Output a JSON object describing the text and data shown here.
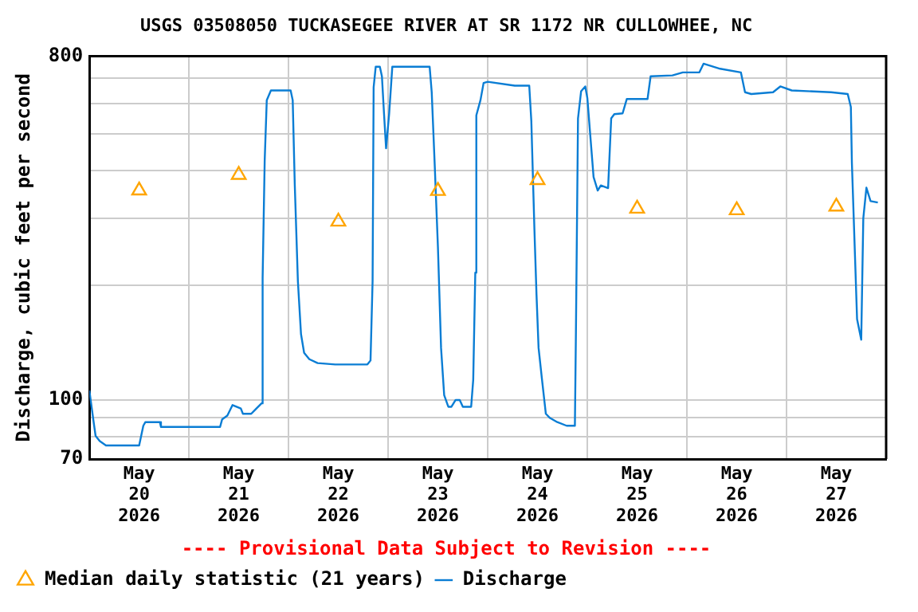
{
  "chart_data": {
    "type": "line",
    "title": "USGS 03508050 TUCKASEGEE RIVER AT SR 1172 NR CULLOWHEE, NC",
    "ylabel": "Discharge, cubic feet per second",
    "annotations": [
      "---- Provisional Data Subject to Revision ----"
    ],
    "xlim": [
      "2026-05-20T00:00",
      "2026-05-28T00:00"
    ],
    "xticks": [
      {
        "value": "2026-05-20T12:00",
        "label": "May 20 2026"
      },
      {
        "value": "2026-05-21T12:00",
        "label": "May 21 2026"
      },
      {
        "value": "2026-05-22T12:00",
        "label": "May 22 2026"
      },
      {
        "value": "2026-05-23T12:00",
        "label": "May 23 2026"
      },
      {
        "value": "2026-05-24T12:00",
        "label": "May 24 2026"
      },
      {
        "value": "2026-05-25T12:00",
        "label": "May 25 2026"
      },
      {
        "value": "2026-05-26T12:00",
        "label": "May 26 2026"
      },
      {
        "value": "2026-05-27T12:00",
        "label": "May 27 2026"
      },
      {
        "value": "2026-05-21T00:00",
        "label": null
      },
      {
        "value": "2026-05-22T00:00",
        "label": null
      },
      {
        "value": "2026-05-23T00:00",
        "label": null
      },
      {
        "value": "2026-05-24T00:00",
        "label": null
      },
      {
        "value": "2026-05-25T00:00",
        "label": null
      },
      {
        "value": "2026-05-26T00:00",
        "label": null
      },
      {
        "value": "2026-05-27T00:00",
        "label": null
      }
    ],
    "ylim": [
      70,
      800
    ],
    "yticks": [
      70,
      {
        "value": 80,
        "label": null
      },
      {
        "value": 90,
        "label": null
      },
      100,
      {
        "value": 200,
        "label": null
      },
      {
        "value": 300,
        "label": null
      },
      {
        "value": 400,
        "label": null
      },
      {
        "value": 500,
        "label": null
      },
      {
        "value": 600,
        "label": null
      },
      {
        "value": 700,
        "label": null
      },
      800
    ],
    "log": "y",
    "grid": true,
    "legend": "bottom",
    "series": [
      {
        "name": "Median daily statistic (21 years)",
        "type": "scatter",
        "marker": "triangle",
        "color": "#ffa500",
        "x": [
          "2026-05-20T12:00",
          "2026-05-21T12:00",
          "2026-05-22T12:00",
          "2026-05-23T12:00",
          "2026-05-24T12:00",
          "2026-05-25T12:00",
          "2026-05-26T12:00",
          "2026-05-27T12:00"
        ],
        "values": [
          355,
          390,
          294,
          354,
          378,
          318,
          315,
          322
        ]
      },
      {
        "name": "Discharge",
        "type": "line",
        "marker": "none",
        "color": "#0a7dd4",
        "x": [
          "2026-05-20T00:00",
          "2026-05-20T01:00",
          "2026-05-20T01:30",
          "2026-05-20T02:30",
          "2026-05-20T04:00",
          "2026-05-20T12:00",
          "2026-05-20T13:00",
          "2026-05-20T13:30",
          "2026-05-20T17:00",
          "2026-05-20T17:15",
          "2026-05-21T07:30",
          "2026-05-21T08:00",
          "2026-05-21T09:15",
          "2026-05-21T10:30",
          "2026-05-21T12:30",
          "2026-05-21T13:00",
          "2026-05-21T15:00",
          "2026-05-21T16:15",
          "2026-05-21T17:30",
          "2026-05-21T17:45",
          "2026-05-21T18:15",
          "2026-05-21T18:45",
          "2026-05-21T19:45",
          "2026-05-22T00:30",
          "2026-05-22T01:00",
          "2026-05-22T01:30",
          "2026-05-22T02:15",
          "2026-05-22T03:00",
          "2026-05-22T03:45",
          "2026-05-22T05:00",
          "2026-05-22T07:00",
          "2026-05-22T11:15",
          "2026-05-22T19:00",
          "2026-05-22T19:45",
          "2026-05-22T20:15",
          "2026-05-22T20:30",
          "2026-05-22T21:00",
          "2026-05-22T22:00",
          "2026-05-22T22:30",
          "2026-05-22T23:00",
          "2026-05-22T23:30",
          "2026-05-23T00:15",
          "2026-05-23T01:00",
          "2026-05-23T10:00",
          "2026-05-23T10:30",
          "2026-05-23T11:15",
          "2026-05-23T12:00",
          "2026-05-23T12:45",
          "2026-05-23T13:30",
          "2026-05-23T14:30",
          "2026-05-23T15:15",
          "2026-05-23T16:15",
          "2026-05-23T17:15",
          "2026-05-23T18:00",
          "2026-05-23T20:00",
          "2026-05-23T20:30",
          "2026-05-23T21:00",
          "2026-05-23T21:15",
          "2026-05-23T22:15",
          "2026-05-23T23:00",
          "2026-05-24T00:00",
          "2026-05-24T06:30",
          "2026-05-24T10:00",
          "2026-05-24T10:30",
          "2026-05-24T11:15",
          "2026-05-24T11:45",
          "2026-05-24T12:15",
          "2026-05-24T13:00",
          "2026-05-24T14:00",
          "2026-05-24T15:00",
          "2026-05-24T16:45",
          "2026-05-24T19:00",
          "2026-05-24T21:00",
          "2026-05-24T21:15",
          "2026-05-24T21:45",
          "2026-05-24T22:30",
          "2026-05-24T23:30",
          "2026-05-25T00:00",
          "2026-05-25T00:45",
          "2026-05-25T01:30",
          "2026-05-25T02:30",
          "2026-05-25T03:15",
          "2026-05-25T05:00",
          "2026-05-25T05:45",
          "2026-05-25T06:30",
          "2026-05-25T08:30",
          "2026-05-25T09:30",
          "2026-05-25T14:30",
          "2026-05-25T15:15",
          "2026-05-25T20:30",
          "2026-05-25T23:00",
          "2026-05-26T03:00",
          "2026-05-26T04:00",
          "2026-05-26T08:00",
          "2026-05-26T13:00",
          "2026-05-26T14:00",
          "2026-05-26T15:30",
          "2026-05-26T20:45",
          "2026-05-26T22:30",
          "2026-05-27T01:15",
          "2026-05-27T10:45",
          "2026-05-27T14:45",
          "2026-05-27T15:30",
          "2026-05-27T15:45",
          "2026-05-27T16:30",
          "2026-05-27T17:00",
          "2026-05-27T18:00",
          "2026-05-27T18:30",
          "2026-05-27T19:15",
          "2026-05-27T20:15",
          "2026-05-27T22:00"
        ],
        "values": [
          106,
          88,
          80.5,
          78,
          76,
          76,
          85.6,
          87.5,
          87.5,
          85,
          85,
          89,
          91,
          97,
          95,
          92,
          92,
          95,
          98,
          209,
          426,
          613,
          650,
          650,
          613,
          367,
          205,
          149,
          133,
          128,
          125,
          124,
          124,
          127,
          205,
          662,
          750,
          750,
          708,
          566,
          458,
          566,
          750,
          750,
          643,
          407,
          251,
          137,
          103,
          96,
          96,
          100,
          100,
          96,
          96,
          113,
          216,
          559,
          613,
          680,
          685,
          669,
          669,
          541,
          280,
          189,
          137,
          115,
          92,
          89.7,
          87.5,
          85.6,
          85.6,
          151,
          549,
          647,
          666,
          621,
          489,
          385,
          355,
          366,
          360,
          549,
          563,
          566,
          617,
          617,
          708,
          712,
          725,
          725,
          764,
          741,
          725,
          643,
          636,
          643,
          666,
          650,
          643,
          636,
          588,
          420,
          238,
          163,
          144,
          300,
          361,
          333,
          330
        ]
      }
    ]
  }
}
